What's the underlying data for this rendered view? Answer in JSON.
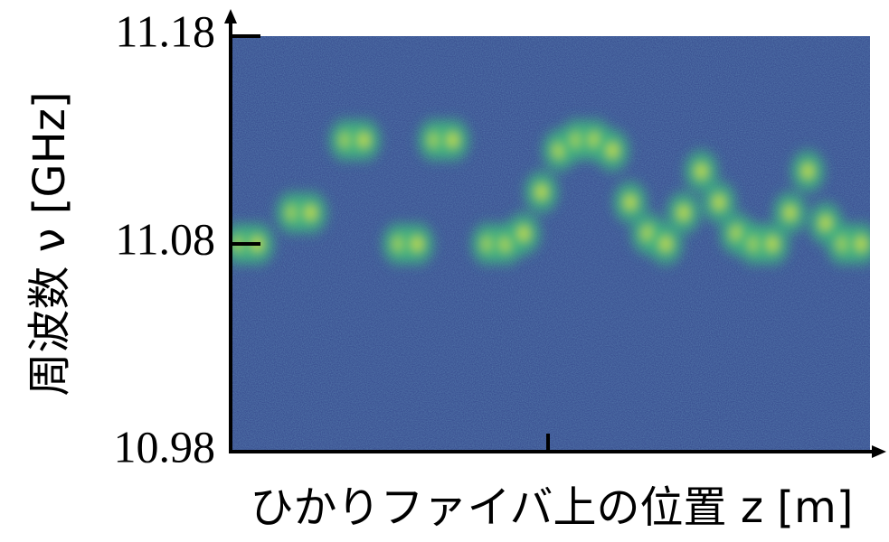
{
  "chart_data": {
    "type": "peak-map",
    "x_label": "ひかりファイバ上の位置 z [m]",
    "y_label": "周波数 ν [GHz]",
    "categories": [
      null,
      null,
      null,
      null,
      null,
      null,
      null,
      null,
      null,
      null,
      null,
      null,
      null,
      null,
      null,
      null,
      null,
      null,
      null,
      null,
      null,
      null,
      null,
      null,
      null,
      null,
      null,
      null,
      null,
      null,
      null,
      null,
      null,
      null,
      null,
      null
    ],
    "values": [
      11.08,
      11.08,
      null,
      11.095,
      11.095,
      null,
      11.13,
      11.13,
      null,
      11.08,
      11.08,
      11.13,
      11.13,
      null,
      11.08,
      11.08,
      11.085,
      11.105,
      11.125,
      11.13,
      11.13,
      11.125,
      11.1,
      11.085,
      11.08,
      11.095,
      11.115,
      11.1,
      11.085,
      11.08,
      11.08,
      11.095,
      11.115,
      11.09,
      11.08,
      11.08
    ],
    "ylim": [
      10.98,
      11.18
    ],
    "yticks": [
      10.98,
      11.08,
      11.18
    ],
    "background": "#3b5192",
    "peak_color": "#e6e63c",
    "halo_color": "#3fb47e"
  }
}
